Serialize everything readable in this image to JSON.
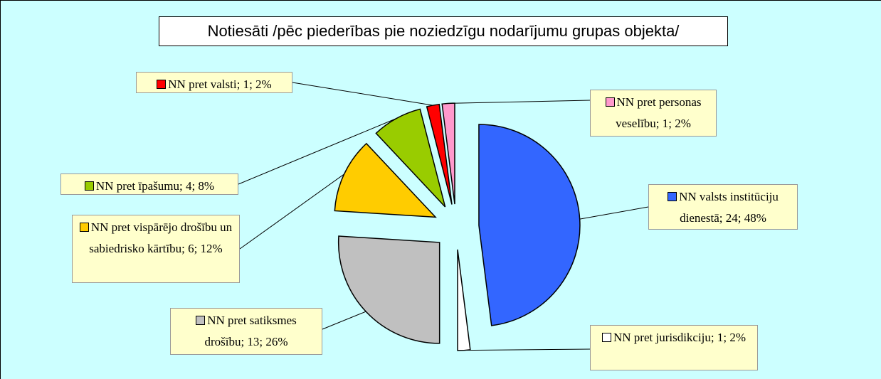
{
  "chart_data": {
    "type": "pie",
    "title": "Notiesāti /pēc piederības pie noziedzīgu nodarījumu grupas objekta/",
    "values": [
      24,
      1,
      13,
      6,
      4,
      1,
      1
    ],
    "value_labels": [
      "NN valsts institūciju dienestā; 24; 48%",
      "NN pret jurisdikciju; 1; 2%",
      "NN pret satiksmes drošību; 13; 26%",
      "NN pret vispārējo drošību un sabiedrisko kārtību; 6; 12%",
      "NN pret īpašumu; 4; 8%",
      "NN pret valsti; 1; 2%",
      "NN pret personas veselību; 1; 2%"
    ],
    "colors": [
      "#3366ff",
      "#ffffff",
      "#c0c0c0",
      "#ffcc00",
      "#99cc00",
      "#ff0000",
      "#ff99cc"
    ]
  }
}
